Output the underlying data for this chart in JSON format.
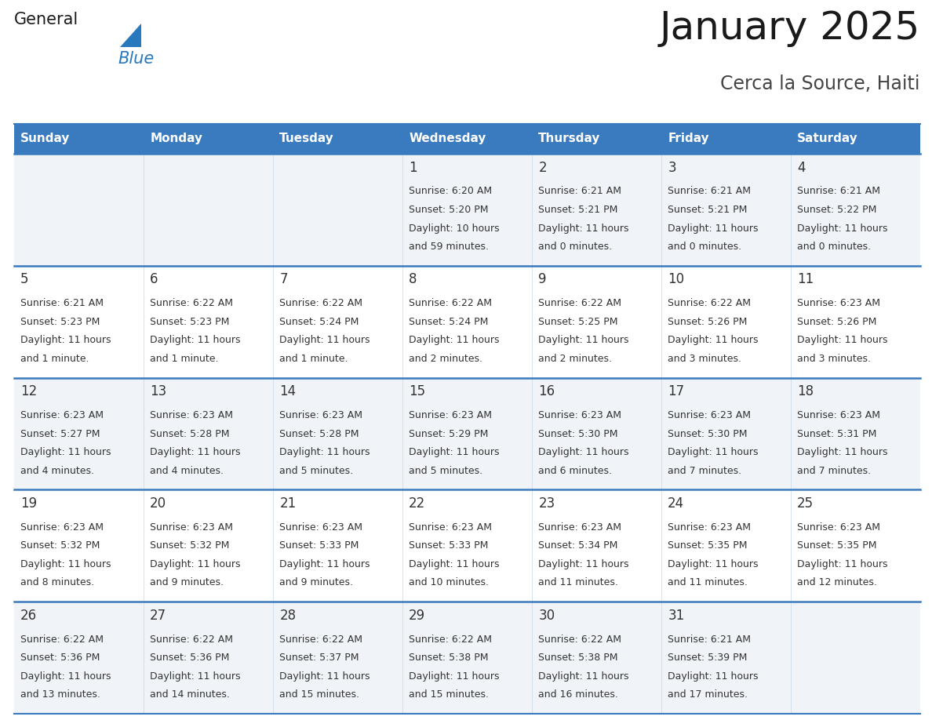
{
  "title": "January 2025",
  "subtitle": "Cerca la Source, Haiti",
  "days_of_week": [
    "Sunday",
    "Monday",
    "Tuesday",
    "Wednesday",
    "Thursday",
    "Friday",
    "Saturday"
  ],
  "header_bg": "#3a7abf",
  "header_text_color": "#ffffff",
  "row_bg_light": "#f0f4f8",
  "row_bg_white": "#ffffff",
  "cell_text_color": "#333333",
  "divider_color": "#3a7abf",
  "divider_color_light": "#a0b8d8",
  "calendar_data": [
    [
      {
        "day": null,
        "sunrise": null,
        "sunset": null,
        "daylight": null
      },
      {
        "day": null,
        "sunrise": null,
        "sunset": null,
        "daylight": null
      },
      {
        "day": null,
        "sunrise": null,
        "sunset": null,
        "daylight": null
      },
      {
        "day": 1,
        "sunrise": "6:20 AM",
        "sunset": "5:20 PM",
        "daylight": "10 hours\nand 59 minutes."
      },
      {
        "day": 2,
        "sunrise": "6:21 AM",
        "sunset": "5:21 PM",
        "daylight": "11 hours\nand 0 minutes."
      },
      {
        "day": 3,
        "sunrise": "6:21 AM",
        "sunset": "5:21 PM",
        "daylight": "11 hours\nand 0 minutes."
      },
      {
        "day": 4,
        "sunrise": "6:21 AM",
        "sunset": "5:22 PM",
        "daylight": "11 hours\nand 0 minutes."
      }
    ],
    [
      {
        "day": 5,
        "sunrise": "6:21 AM",
        "sunset": "5:23 PM",
        "daylight": "11 hours\nand 1 minute."
      },
      {
        "day": 6,
        "sunrise": "6:22 AM",
        "sunset": "5:23 PM",
        "daylight": "11 hours\nand 1 minute."
      },
      {
        "day": 7,
        "sunrise": "6:22 AM",
        "sunset": "5:24 PM",
        "daylight": "11 hours\nand 1 minute."
      },
      {
        "day": 8,
        "sunrise": "6:22 AM",
        "sunset": "5:24 PM",
        "daylight": "11 hours\nand 2 minutes."
      },
      {
        "day": 9,
        "sunrise": "6:22 AM",
        "sunset": "5:25 PM",
        "daylight": "11 hours\nand 2 minutes."
      },
      {
        "day": 10,
        "sunrise": "6:22 AM",
        "sunset": "5:26 PM",
        "daylight": "11 hours\nand 3 minutes."
      },
      {
        "day": 11,
        "sunrise": "6:23 AM",
        "sunset": "5:26 PM",
        "daylight": "11 hours\nand 3 minutes."
      }
    ],
    [
      {
        "day": 12,
        "sunrise": "6:23 AM",
        "sunset": "5:27 PM",
        "daylight": "11 hours\nand 4 minutes."
      },
      {
        "day": 13,
        "sunrise": "6:23 AM",
        "sunset": "5:28 PM",
        "daylight": "11 hours\nand 4 minutes."
      },
      {
        "day": 14,
        "sunrise": "6:23 AM",
        "sunset": "5:28 PM",
        "daylight": "11 hours\nand 5 minutes."
      },
      {
        "day": 15,
        "sunrise": "6:23 AM",
        "sunset": "5:29 PM",
        "daylight": "11 hours\nand 5 minutes."
      },
      {
        "day": 16,
        "sunrise": "6:23 AM",
        "sunset": "5:30 PM",
        "daylight": "11 hours\nand 6 minutes."
      },
      {
        "day": 17,
        "sunrise": "6:23 AM",
        "sunset": "5:30 PM",
        "daylight": "11 hours\nand 7 minutes."
      },
      {
        "day": 18,
        "sunrise": "6:23 AM",
        "sunset": "5:31 PM",
        "daylight": "11 hours\nand 7 minutes."
      }
    ],
    [
      {
        "day": 19,
        "sunrise": "6:23 AM",
        "sunset": "5:32 PM",
        "daylight": "11 hours\nand 8 minutes."
      },
      {
        "day": 20,
        "sunrise": "6:23 AM",
        "sunset": "5:32 PM",
        "daylight": "11 hours\nand 9 minutes."
      },
      {
        "day": 21,
        "sunrise": "6:23 AM",
        "sunset": "5:33 PM",
        "daylight": "11 hours\nand 9 minutes."
      },
      {
        "day": 22,
        "sunrise": "6:23 AM",
        "sunset": "5:33 PM",
        "daylight": "11 hours\nand 10 minutes."
      },
      {
        "day": 23,
        "sunrise": "6:23 AM",
        "sunset": "5:34 PM",
        "daylight": "11 hours\nand 11 minutes."
      },
      {
        "day": 24,
        "sunrise": "6:23 AM",
        "sunset": "5:35 PM",
        "daylight": "11 hours\nand 11 minutes."
      },
      {
        "day": 25,
        "sunrise": "6:23 AM",
        "sunset": "5:35 PM",
        "daylight": "11 hours\nand 12 minutes."
      }
    ],
    [
      {
        "day": 26,
        "sunrise": "6:22 AM",
        "sunset": "5:36 PM",
        "daylight": "11 hours\nand 13 minutes."
      },
      {
        "day": 27,
        "sunrise": "6:22 AM",
        "sunset": "5:36 PM",
        "daylight": "11 hours\nand 14 minutes."
      },
      {
        "day": 28,
        "sunrise": "6:22 AM",
        "sunset": "5:37 PM",
        "daylight": "11 hours\nand 15 minutes."
      },
      {
        "day": 29,
        "sunrise": "6:22 AM",
        "sunset": "5:38 PM",
        "daylight": "11 hours\nand 15 minutes."
      },
      {
        "day": 30,
        "sunrise": "6:22 AM",
        "sunset": "5:38 PM",
        "daylight": "11 hours\nand 16 minutes."
      },
      {
        "day": 31,
        "sunrise": "6:21 AM",
        "sunset": "5:39 PM",
        "daylight": "11 hours\nand 17 minutes."
      },
      {
        "day": null,
        "sunrise": null,
        "sunset": null,
        "daylight": null
      }
    ]
  ],
  "logo_general_color": "#1a1a1a",
  "logo_blue_color": "#2878be",
  "title_fontsize": 36,
  "subtitle_fontsize": 17,
  "header_fontsize": 11,
  "day_num_fontsize": 12,
  "cell_fontsize": 9.0,
  "fig_width": 11.88,
  "fig_height": 9.18
}
